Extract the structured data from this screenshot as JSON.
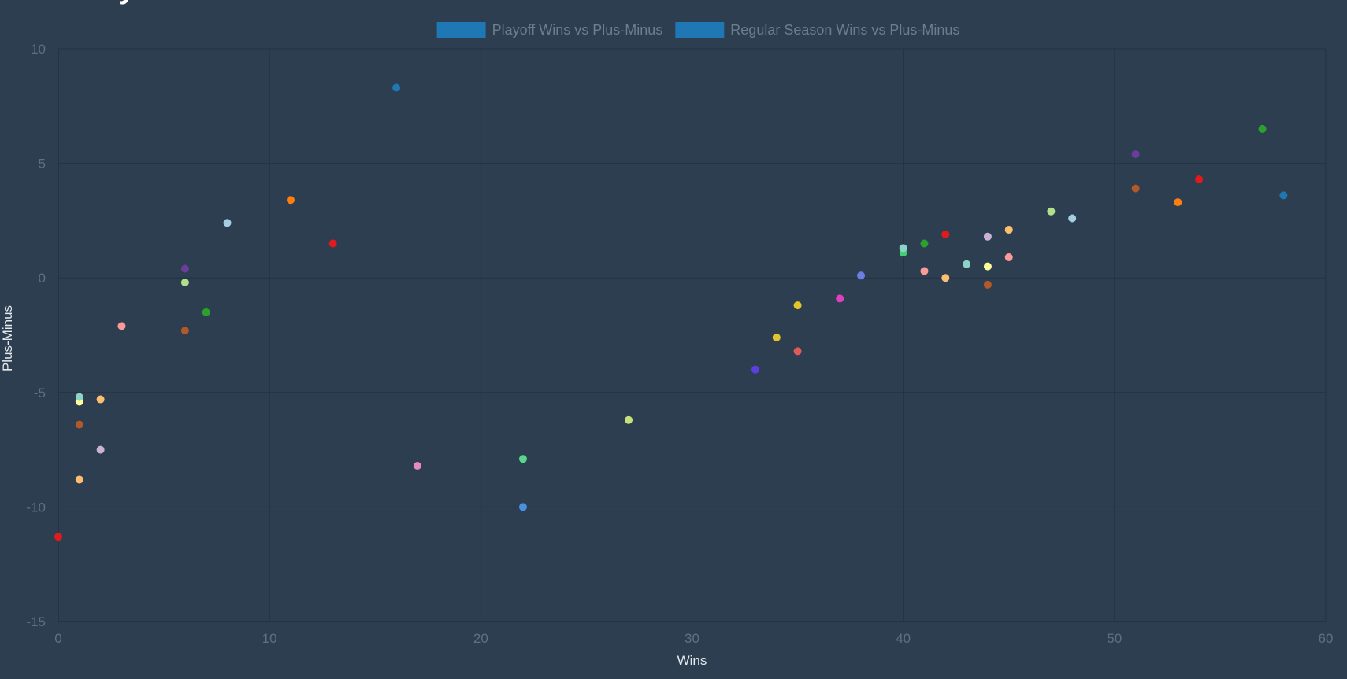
{
  "title_fragment": "y",
  "chart_data": {
    "type": "scatter",
    "title": "",
    "xlabel": "Wins",
    "ylabel": "Plus-Minus",
    "xlim": [
      0,
      60
    ],
    "ylim": [
      -15,
      10
    ],
    "x_ticks": [
      0,
      10,
      20,
      30,
      40,
      50,
      60
    ],
    "y_ticks": [
      -15,
      -10,
      -5,
      0,
      5,
      10
    ],
    "grid": true,
    "legend_position": "top-center",
    "legend": [
      {
        "label": "Playoff Wins vs Plus-Minus",
        "color": "#1f77b4"
      },
      {
        "label": "Regular Season Wins vs Plus-Minus",
        "color": "#1f77b4"
      }
    ],
    "series": [
      {
        "points": [
          {
            "x": 16,
            "y": 8.3,
            "color": "#1f77b4"
          },
          {
            "x": 11,
            "y": 3.4,
            "color": "#ff7f0e"
          },
          {
            "x": 7,
            "y": -1.5,
            "color": "#2ca02c"
          },
          {
            "x": 13,
            "y": 1.5,
            "color": "#e31a1c"
          },
          {
            "x": 6,
            "y": 0.4,
            "color": "#6a3d9a"
          },
          {
            "x": 6,
            "y": -2.3,
            "color": "#b15928"
          },
          {
            "x": 17,
            "y": -8.2,
            "color": "#e78ac3"
          },
          {
            "x": 22,
            "y": -10.0,
            "color": "#4a90e2"
          },
          {
            "x": 27,
            "y": -6.2,
            "color": "#c7e07a"
          },
          {
            "x": 8,
            "y": 2.4,
            "color": "#a6cee3"
          },
          {
            "x": 1,
            "y": -8.8,
            "color": "#fdbf6f"
          },
          {
            "x": 22,
            "y": -7.9,
            "color": "#58d68d"
          },
          {
            "x": 3,
            "y": -2.1,
            "color": "#fb9a99"
          },
          {
            "x": 2,
            "y": -7.5,
            "color": "#cab2d6"
          },
          {
            "x": 1,
            "y": -6.4,
            "color": "#b15928"
          },
          {
            "x": 1,
            "y": -5.4,
            "color": "#ffff99"
          },
          {
            "x": 1,
            "y": -5.2,
            "color": "#8dd3c7"
          },
          {
            "x": 2,
            "y": -5.3,
            "color": "#fdbf6f"
          },
          {
            "x": 6,
            "y": -0.2,
            "color": "#b2df8a"
          },
          {
            "x": 0,
            "y": -11.3,
            "color": "#e31a1c"
          }
        ]
      },
      {
        "points": [
          {
            "x": 58,
            "y": 3.6,
            "color": "#1f77b4"
          },
          {
            "x": 53,
            "y": 3.3,
            "color": "#ff7f0e"
          },
          {
            "x": 57,
            "y": 6.5,
            "color": "#2ca02c"
          },
          {
            "x": 54,
            "y": 4.3,
            "color": "#e31a1c"
          },
          {
            "x": 51,
            "y": 5.4,
            "color": "#6a3d9a"
          },
          {
            "x": 51,
            "y": 3.9,
            "color": "#b15928"
          },
          {
            "x": 37,
            "y": -0.9,
            "color": "#e040c0"
          },
          {
            "x": 38,
            "y": 0.1,
            "color": "#6b7fe0"
          },
          {
            "x": 35,
            "y": -1.2,
            "color": "#e5c32a"
          },
          {
            "x": 48,
            "y": 2.6,
            "color": "#a6cee3"
          },
          {
            "x": 45,
            "y": 2.1,
            "color": "#fdbf6f"
          },
          {
            "x": 40,
            "y": 1.1,
            "color": "#3fcf70"
          },
          {
            "x": 45,
            "y": 0.9,
            "color": "#fb9a99"
          },
          {
            "x": 44,
            "y": 1.8,
            "color": "#cab2d6"
          },
          {
            "x": 44,
            "y": -0.3,
            "color": "#b15928"
          },
          {
            "x": 44,
            "y": 0.5,
            "color": "#ffff99"
          },
          {
            "x": 43,
            "y": 0.6,
            "color": "#8dd3c7"
          },
          {
            "x": 42,
            "y": 0.0,
            "color": "#fdbf6f"
          },
          {
            "x": 47,
            "y": 2.9,
            "color": "#b2df8a"
          },
          {
            "x": 42,
            "y": 1.9,
            "color": "#e31a1c"
          },
          {
            "x": 41,
            "y": 1.5,
            "color": "#2ca02c"
          },
          {
            "x": 41,
            "y": 0.3,
            "color": "#fb9a99"
          },
          {
            "x": 40,
            "y": 1.3,
            "color": "#8dd3c7"
          },
          {
            "x": 33,
            "y": -4.0,
            "color": "#5b3fe0"
          },
          {
            "x": 34,
            "y": -2.6,
            "color": "#e5c32a"
          },
          {
            "x": 35,
            "y": -3.2,
            "color": "#e05a5a"
          }
        ]
      }
    ]
  }
}
